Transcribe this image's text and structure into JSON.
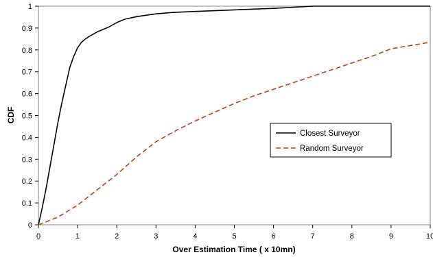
{
  "chart_data": {
    "type": "line",
    "xlabel": "Over Estimation Time ( x 10mn)",
    "ylabel": "CDF",
    "xlim": [
      0,
      10
    ],
    "ylim": [
      0,
      1
    ],
    "x_ticks": [
      "0",
      "1",
      "2",
      "3",
      "4",
      "5",
      "6",
      "7",
      "8",
      "9",
      "10"
    ],
    "y_ticks": [
      "0",
      "0.1",
      "0.2",
      "0.3",
      "0.4",
      "0.5",
      "0.6",
      "0.7",
      "0.8",
      "0.9",
      "1"
    ],
    "grid": false,
    "legend_position": "right-middle",
    "series": [
      {
        "name": "Closest Surveyor",
        "color": "#000000",
        "style": "solid",
        "x": [
          0,
          0.1,
          0.2,
          0.3,
          0.4,
          0.5,
          0.6,
          0.7,
          0.8,
          0.9,
          1.0,
          1.1,
          1.2,
          1.3,
          1.4,
          1.5,
          1.6,
          1.8,
          2.0,
          2.2,
          2.5,
          3.0,
          3.5,
          4.0,
          5.0,
          6.0,
          6.7,
          7.0,
          10.0
        ],
        "y": [
          0,
          0.08,
          0.17,
          0.27,
          0.37,
          0.47,
          0.56,
          0.64,
          0.72,
          0.77,
          0.81,
          0.835,
          0.85,
          0.862,
          0.872,
          0.882,
          0.89,
          0.905,
          0.925,
          0.94,
          0.952,
          0.965,
          0.972,
          0.976,
          0.983,
          0.99,
          0.997,
          1.0,
          1.0
        ]
      },
      {
        "name": "Random Surveyor",
        "color": "#b5441a",
        "style": "dashed",
        "x": [
          0,
          0.5,
          1.0,
          1.5,
          2.0,
          2.5,
          3.0,
          3.5,
          4.0,
          4.5,
          5.0,
          5.5,
          6.0,
          6.5,
          7.0,
          7.5,
          8.0,
          8.5,
          9.0,
          9.5,
          10.0
        ],
        "y": [
          0,
          0.035,
          0.09,
          0.16,
          0.23,
          0.31,
          0.38,
          0.43,
          0.475,
          0.515,
          0.555,
          0.59,
          0.62,
          0.65,
          0.68,
          0.71,
          0.74,
          0.77,
          0.805,
          0.82,
          0.835
        ]
      }
    ]
  }
}
